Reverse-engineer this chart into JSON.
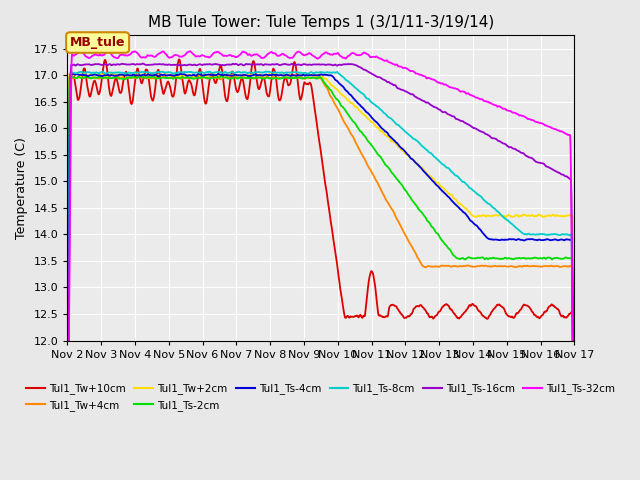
{
  "title": "MB Tule Tower: Tule Temps 1 (3/1/11-3/19/14)",
  "ylabel": "Temperature (C)",
  "ylim": [
    12.0,
    17.75
  ],
  "yticks": [
    12.0,
    12.5,
    13.0,
    13.5,
    14.0,
    14.5,
    15.0,
    15.5,
    16.0,
    16.5,
    17.0,
    17.5
  ],
  "bg_color": "#e8e8e8",
  "plot_bg": "#ebebeb",
  "legend_box_color": "#ffff99",
  "legend_box_edge": "#cc8800",
  "series": [
    {
      "label": "Tul1_Tw+10cm",
      "color": "#dd0000",
      "lw": 1.3
    },
    {
      "label": "Tul1_Tw+4cm",
      "color": "#ff8800",
      "lw": 1.3
    },
    {
      "label": "Tul1_Tw+2cm",
      "color": "#ffdd00",
      "lw": 1.3
    },
    {
      "label": "Tul1_Ts-2cm",
      "color": "#00dd00",
      "lw": 1.3
    },
    {
      "label": "Tul1_Ts-4cm",
      "color": "#0000dd",
      "lw": 1.3
    },
    {
      "label": "Tul1_Ts-8cm",
      "color": "#00cccc",
      "lw": 1.3
    },
    {
      "label": "Tul1_Ts-16cm",
      "color": "#9900cc",
      "lw": 1.3
    },
    {
      "label": "Tul1_Ts-32cm",
      "color": "#ff00ff",
      "lw": 1.3
    }
  ],
  "xtick_labels": [
    "Nov 2",
    "Nov 3",
    "Nov 4",
    "Nov 5",
    "Nov 6",
    "Nov 7",
    "Nov 8",
    "Nov 9",
    "Nov 10",
    "Nov 11",
    "Nov 12",
    "Nov 13",
    "Nov 14",
    "Nov 15",
    "Nov 16",
    "Nov 17"
  ],
  "annotation": "MB_tule"
}
